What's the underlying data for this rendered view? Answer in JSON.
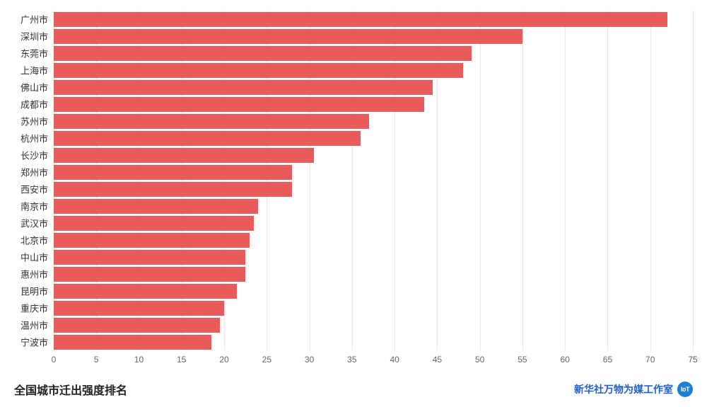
{
  "chart": {
    "type": "bar-horizontal",
    "categories": [
      "广州市",
      "深圳市",
      "东莞市",
      "上海市",
      "佛山市",
      "成都市",
      "苏州市",
      "杭州市",
      "长沙市",
      "郑州市",
      "西安市",
      "南京市",
      "武汉市",
      "北京市",
      "中山市",
      "惠州市",
      "昆明市",
      "重庆市",
      "温州市",
      "宁波市"
    ],
    "values": [
      72,
      55,
      49,
      48,
      44.5,
      43.5,
      37,
      36,
      30.5,
      28,
      28,
      24,
      23.5,
      23,
      22.5,
      22.5,
      21.5,
      20,
      19.5,
      18.5
    ],
    "bar_color": "#e95a5a",
    "background_color": "#ffffff",
    "grid_color": "#e8e8e8",
    "xlim": [
      0,
      75
    ],
    "xtick_step": 5,
    "xticks": [
      0,
      5,
      10,
      15,
      20,
      25,
      30,
      35,
      40,
      45,
      50,
      55,
      60,
      65,
      70,
      75
    ],
    "y_label_fontsize": 13,
    "x_label_fontsize": 12,
    "y_label_color": "#333333",
    "x_label_color": "#666666",
    "bar_gap_ratio": 0.15
  },
  "footer": {
    "title": "全国城市迁出强度排名",
    "credit": "新华社万物为媒工作室",
    "badge": "IoT"
  }
}
